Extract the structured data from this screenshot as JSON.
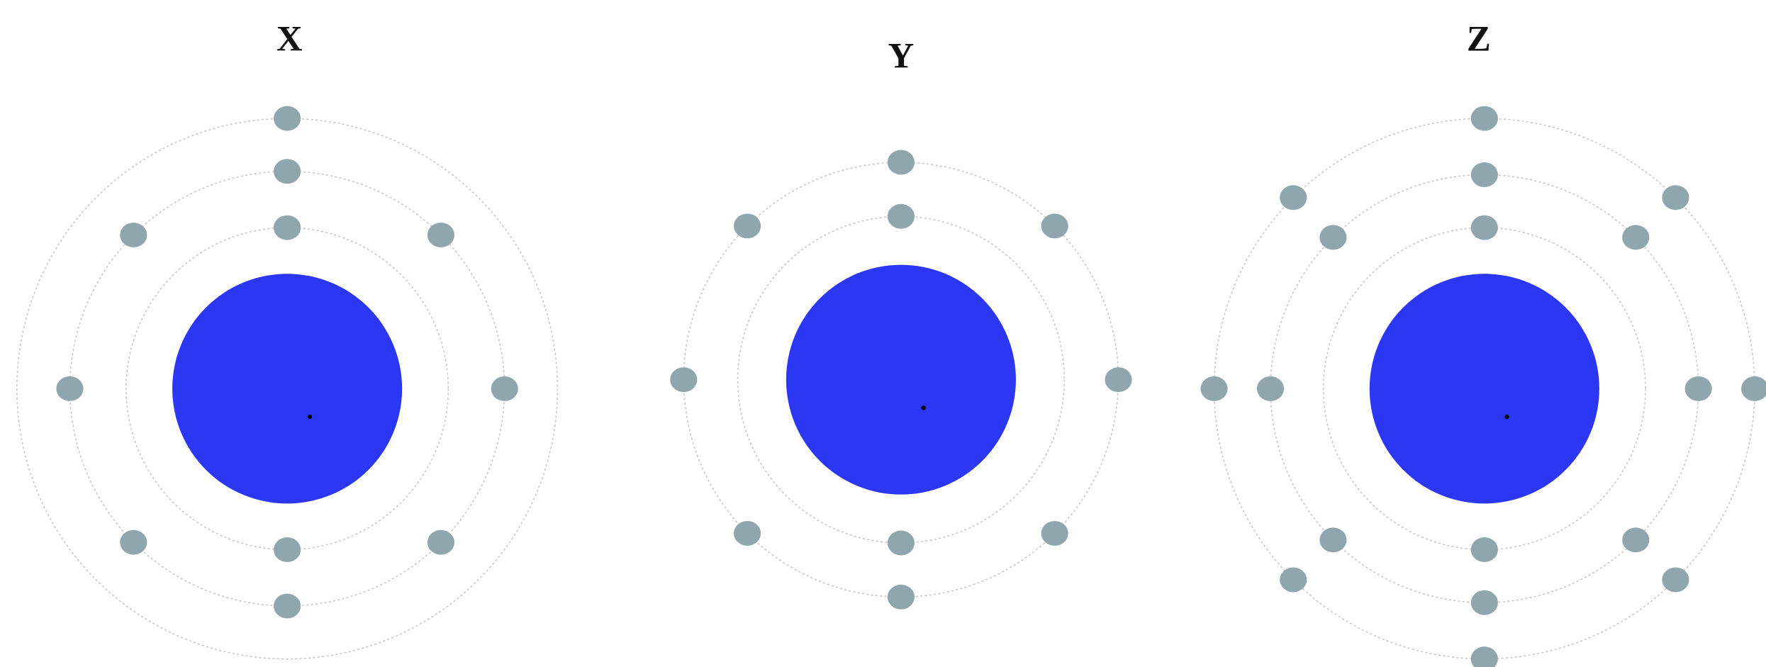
{
  "atoms": [
    {
      "label": "X"
    },
    {
      "label": "Y"
    },
    {
      "label": "Z"
    }
  ]
}
